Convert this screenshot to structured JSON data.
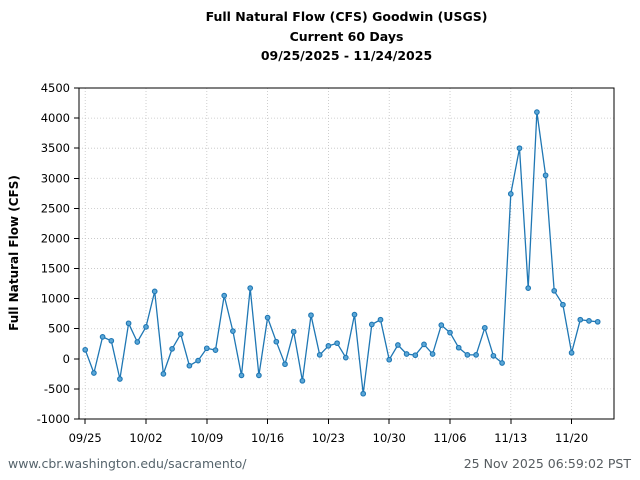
{
  "header": {
    "title_line1": "Full Natural Flow (CFS) Goodwin (USGS)",
    "title_line2": "Current 60 Days",
    "title_line3": "09/25/2025 - 11/24/2025"
  },
  "footer": {
    "url": "www.cbr.washington.edu/sacramento/",
    "timestamp": "25 Nov 2025 06:59:02 PST"
  },
  "chart_data": {
    "type": "line",
    "title": "Full Natural Flow (CFS) Goodwin (USGS) / Current 60 Days / 09/25/2025 - 11/24/2025",
    "xlabel": "",
    "ylabel": "Full Natural Flow (CFS)",
    "ylim": [
      -1000,
      4500
    ],
    "ytick_step": 500,
    "yticks": [
      -1000,
      -500,
      0,
      500,
      1000,
      1500,
      2000,
      2500,
      3000,
      3500,
      4000,
      4500
    ],
    "x_tick_labels": [
      "09/25",
      "10/02",
      "10/09",
      "10/16",
      "10/23",
      "10/30",
      "11/06",
      "11/13",
      "11/20"
    ],
    "x_tick_days": [
      0,
      7,
      14,
      21,
      28,
      35,
      42,
      49,
      56
    ],
    "grid": true,
    "legend": "none",
    "line_color": "#1f77b4",
    "marker_fill": "#5ba7d7",
    "marker": "circle",
    "dates": [
      "09/25",
      "09/26",
      "09/27",
      "09/28",
      "09/29",
      "09/30",
      "10/01",
      "10/02",
      "10/03",
      "10/04",
      "10/05",
      "10/06",
      "10/07",
      "10/08",
      "10/09",
      "10/10",
      "10/11",
      "10/12",
      "10/13",
      "10/14",
      "10/15",
      "10/16",
      "10/17",
      "10/18",
      "10/19",
      "10/20",
      "10/21",
      "10/22",
      "10/23",
      "10/24",
      "10/25",
      "10/26",
      "10/27",
      "10/28",
      "10/29",
      "10/30",
      "10/31",
      "11/01",
      "11/02",
      "11/03",
      "11/04",
      "11/05",
      "11/06",
      "11/07",
      "11/08",
      "11/09",
      "11/10",
      "11/11",
      "11/12",
      "11/13",
      "11/14",
      "11/15",
      "11/16",
      "11/17",
      "11/18",
      "11/19",
      "11/20",
      "11/21",
      "11/22",
      "11/23"
    ],
    "values": [
      150,
      -235,
      365,
      300,
      -335,
      590,
      280,
      530,
      1120,
      -250,
      165,
      410,
      -115,
      -30,
      175,
      145,
      1050,
      460,
      -275,
      1175,
      -275,
      685,
      285,
      -90,
      450,
      -365,
      725,
      65,
      215,
      260,
      20,
      735,
      -580,
      570,
      650,
      -15,
      230,
      80,
      60,
      240,
      80,
      560,
      435,
      185,
      65,
      65,
      515,
      50,
      -70,
      2740,
      3500,
      1175,
      4100,
      3050,
      1130,
      900,
      100,
      650,
      630,
      615
    ]
  }
}
